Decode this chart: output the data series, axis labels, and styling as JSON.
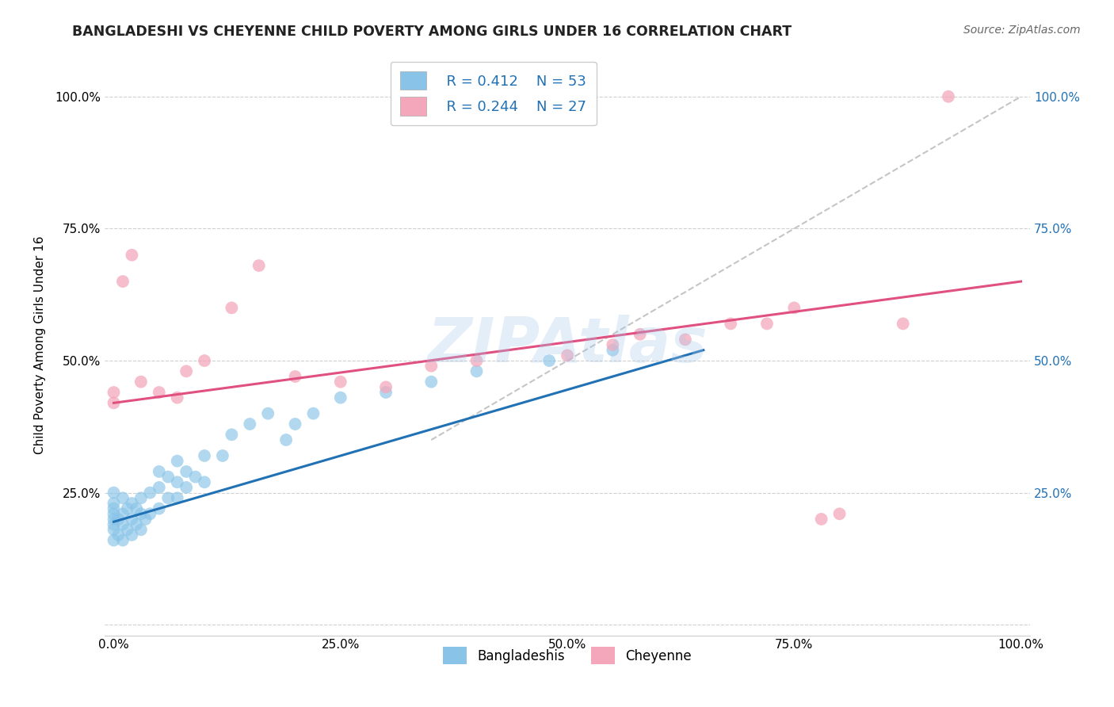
{
  "title": "BANGLADESHI VS CHEYENNE CHILD POVERTY AMONG GIRLS UNDER 16 CORRELATION CHART",
  "source": "Source: ZipAtlas.com",
  "ylabel": "Child Poverty Among Girls Under 16",
  "xlabel": "",
  "xlim": [
    -0.01,
    1.01
  ],
  "ylim": [
    -0.02,
    1.08
  ],
  "xticks": [
    0.0,
    0.25,
    0.5,
    0.75,
    1.0
  ],
  "yticks": [
    0.0,
    0.25,
    0.5,
    0.75,
    1.0
  ],
  "xticklabels": [
    "0.0%",
    "25.0%",
    "50.0%",
    "75.0%",
    "100.0%"
  ],
  "yticklabels": [
    "",
    "25.0%",
    "50.0%",
    "75.0%",
    "100.0%"
  ],
  "right_yticklabels": [
    "",
    "25.0%",
    "50.0%",
    "75.0%",
    "100.0%"
  ],
  "blue_color": "#89C4E8",
  "pink_color": "#F4A7BB",
  "blue_line_color": "#2171b5",
  "pink_line_color": "#e05080",
  "dashed_line_color": "#bbbbbb",
  "legend_R1": "R = 0.412",
  "legend_N1": "N = 53",
  "legend_R2": "R = 0.244",
  "legend_N2": "N = 27",
  "legend_label1": "Bangladeshis",
  "legend_label2": "Cheyenne",
  "watermark": "ZIPAtlas",
  "title_fontsize": 12.5,
  "source_fontsize": 10,
  "label_fontsize": 11,
  "tick_fontsize": 11,
  "blue_R": 0.412,
  "pink_R": 0.244,
  "blue_N": 53,
  "pink_N": 27,
  "blue_line_x0": 0.0,
  "blue_line_y0": 0.195,
  "blue_line_x1": 0.65,
  "blue_line_y1": 0.52,
  "pink_line_x0": 0.0,
  "pink_line_y0": 0.42,
  "pink_line_x1": 1.0,
  "pink_line_y1": 0.65,
  "diag_line_x0": 0.35,
  "diag_line_y0": 0.35,
  "diag_line_x1": 1.0,
  "diag_line_y1": 1.0,
  "blue_x": [
    0.0,
    0.0,
    0.0,
    0.0,
    0.0,
    0.0,
    0.0,
    0.0,
    0.005,
    0.005,
    0.01,
    0.01,
    0.01,
    0.01,
    0.015,
    0.015,
    0.02,
    0.02,
    0.02,
    0.025,
    0.025,
    0.03,
    0.03,
    0.03,
    0.035,
    0.04,
    0.04,
    0.05,
    0.05,
    0.05,
    0.06,
    0.06,
    0.07,
    0.07,
    0.07,
    0.08,
    0.08,
    0.09,
    0.1,
    0.1,
    0.12,
    0.13,
    0.15,
    0.17,
    0.19,
    0.2,
    0.22,
    0.25,
    0.3,
    0.35,
    0.4,
    0.48,
    0.55
  ],
  "blue_y": [
    0.16,
    0.18,
    0.19,
    0.2,
    0.21,
    0.22,
    0.23,
    0.25,
    0.17,
    0.2,
    0.16,
    0.19,
    0.21,
    0.24,
    0.18,
    0.22,
    0.17,
    0.2,
    0.23,
    0.19,
    0.22,
    0.18,
    0.21,
    0.24,
    0.2,
    0.21,
    0.25,
    0.22,
    0.26,
    0.29,
    0.24,
    0.28,
    0.24,
    0.27,
    0.31,
    0.26,
    0.29,
    0.28,
    0.27,
    0.32,
    0.32,
    0.36,
    0.38,
    0.4,
    0.35,
    0.38,
    0.4,
    0.43,
    0.44,
    0.46,
    0.48,
    0.5,
    0.52
  ],
  "pink_x": [
    0.0,
    0.0,
    0.01,
    0.02,
    0.03,
    0.05,
    0.07,
    0.08,
    0.1,
    0.13,
    0.16,
    0.2,
    0.25,
    0.3,
    0.35,
    0.4,
    0.5,
    0.55,
    0.58,
    0.63,
    0.68,
    0.72,
    0.75,
    0.78,
    0.8,
    0.87,
    0.92
  ],
  "pink_y": [
    0.42,
    0.44,
    0.65,
    0.7,
    0.46,
    0.44,
    0.43,
    0.48,
    0.5,
    0.6,
    0.68,
    0.47,
    0.46,
    0.45,
    0.49,
    0.5,
    0.51,
    0.53,
    0.55,
    0.54,
    0.57,
    0.57,
    0.6,
    0.2,
    0.21,
    0.57,
    1.0
  ]
}
